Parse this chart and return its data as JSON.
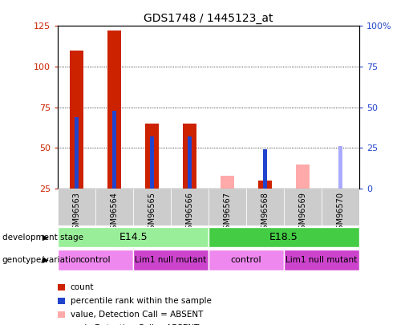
{
  "title": "GDS1748 / 1445123_at",
  "samples": [
    "GSM96563",
    "GSM96564",
    "GSM96565",
    "GSM96566",
    "GSM96567",
    "GSM96568",
    "GSM96569",
    "GSM96570"
  ],
  "count_values": [
    110,
    122,
    65,
    65,
    null,
    30,
    null,
    null
  ],
  "percentile_values": [
    44,
    48,
    32,
    32,
    null,
    24,
    null,
    null
  ],
  "absent_count_values": [
    null,
    null,
    null,
    null,
    33,
    null,
    40,
    null
  ],
  "absent_rank_values": [
    null,
    null,
    null,
    null,
    null,
    null,
    null,
    26
  ],
  "ylim_left": [
    25,
    125
  ],
  "ylim_right": [
    0,
    100
  ],
  "left_ticks": [
    25,
    50,
    75,
    100,
    125
  ],
  "right_ticks": [
    0,
    25,
    50,
    75,
    100
  ],
  "right_tick_labels": [
    "0",
    "25",
    "50",
    "75",
    "100%"
  ],
  "count_color": "#cc2200",
  "percentile_color": "#2244cc",
  "absent_count_color": "#ffaaaa",
  "absent_rank_color": "#aaaaff",
  "dev_stage_e145_color": "#99ee99",
  "dev_stage_e185_color": "#44cc44",
  "genotype_control_color": "#ee88ee",
  "genotype_lim1_color": "#cc44cc",
  "axis_label_color_left": "#cc2200",
  "axis_label_color_right": "#2244cc",
  "sample_label_bg": "#cccccc"
}
